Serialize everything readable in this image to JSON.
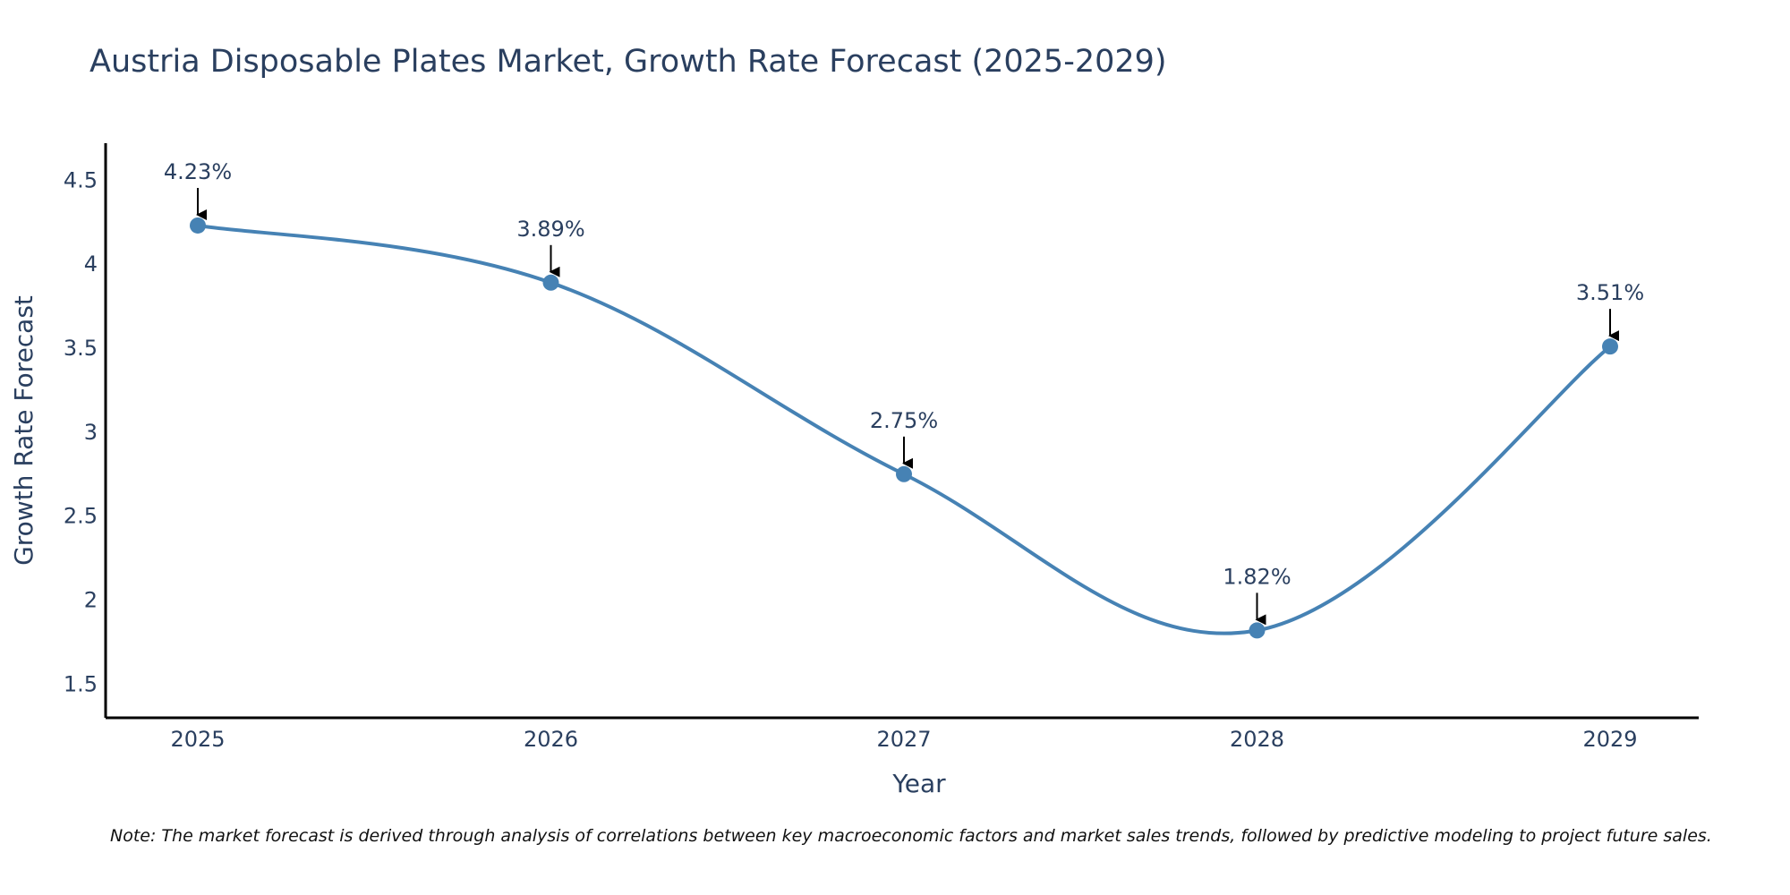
{
  "chart_data": {
    "type": "line",
    "title": "Austria Disposable Plates Market, Growth Rate Forecast (2025-2029)",
    "xlabel": "Year",
    "ylabel": "Growth Rate Forecast",
    "categories": [
      "2025",
      "2026",
      "2027",
      "2028",
      "2029"
    ],
    "series": [
      {
        "name": "Growth Rate Forecast",
        "values": [
          4.23,
          3.89,
          2.75,
          1.82,
          3.51
        ]
      }
    ],
    "data_labels": [
      "4.23%",
      "3.89%",
      "2.75%",
      "1.82%",
      "3.51%"
    ],
    "yticks": [
      1.5,
      2,
      2.5,
      3,
      3.5,
      4,
      4.5
    ],
    "ytick_labels": [
      "1.5",
      "2",
      "2.5",
      "3",
      "3.5",
      "4",
      "4.5"
    ],
    "ylim": [
      1.3,
      4.72
    ],
    "grid": false,
    "line_color": "#4682b4",
    "note": "Note: The market forecast is derived through analysis of correlations between key macroeconomic factors and market sales trends, followed by predictive modeling to project future sales."
  }
}
